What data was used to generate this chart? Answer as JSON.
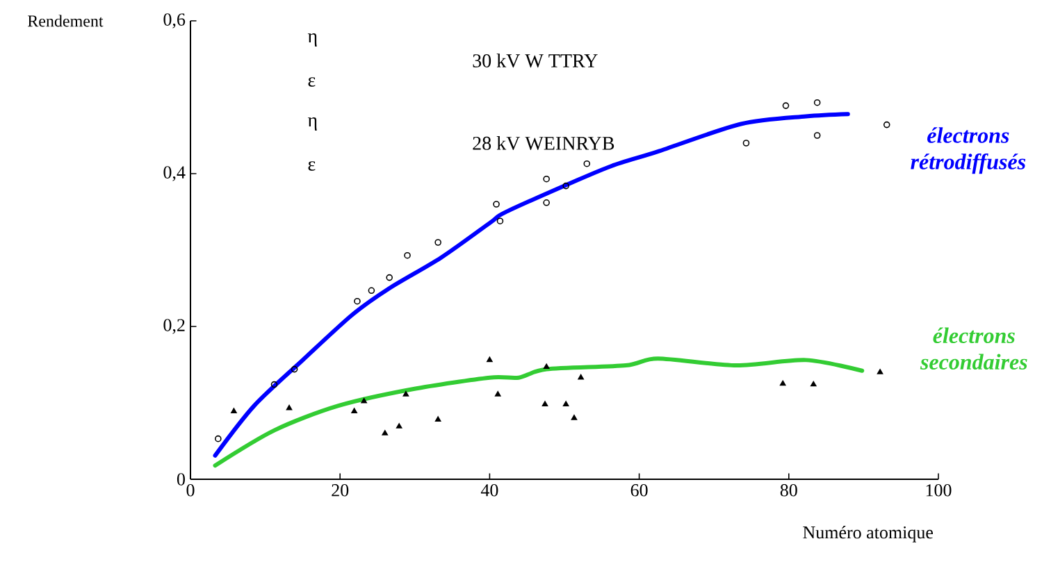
{
  "chart_data": {
    "type": "line",
    "xlabel": "Numéro atomique",
    "ylabel": "Rendement",
    "xlim": [
      0,
      100
    ],
    "xticks": [
      0,
      20,
      40,
      60,
      80,
      100
    ],
    "ylim": [
      0,
      0.6
    ],
    "yticks": [
      {
        "value": 0,
        "label": "0"
      },
      {
        "value": 0.2,
        "label": "0,2"
      },
      {
        "value": 0.4,
        "label": "0,4"
      },
      {
        "value": 0.6,
        "label": "0,6"
      }
    ],
    "annotations": [
      "η",
      "ε",
      "η",
      "ε",
      "30 kV W TTRY",
      "28 kV WEINRYB"
    ],
    "series": [
      {
        "name": "électrons rétrodiffusés",
        "color": "#0000ff",
        "x": [
          3.3,
          8.5,
          14.9,
          21.6,
          26.6,
          33.5,
          40.1,
          42,
          50.2,
          56.3,
          62.5,
          73.6,
          82.3,
          87.9
        ],
        "values": [
          0.031,
          0.096,
          0.155,
          0.215,
          0.25,
          0.29,
          0.336,
          0.349,
          0.385,
          0.41,
          0.429,
          0.465,
          0.475,
          0.478
        ]
      },
      {
        "name": "électrons secondaires",
        "color": "#33cc33",
        "x": [
          3.3,
          11.2,
          19.7,
          29.7,
          40,
          43.9,
          47.6,
          58.2,
          62.5,
          73,
          82.3,
          89.8
        ],
        "values": [
          0.018,
          0.064,
          0.096,
          0.118,
          0.133,
          0.133,
          0.144,
          0.149,
          0.158,
          0.149,
          0.156,
          0.142
        ]
      },
      {
        "type": "scatter",
        "color": "#000000",
        "marker": "circle",
        "x": [
          3.7,
          11.2,
          13.9,
          22.3,
          24.2,
          26.6,
          29,
          33.1,
          40.9,
          41.4,
          47.6,
          47.6,
          50.2,
          53,
          74.3,
          79.6,
          83.8,
          83.8,
          93.1
        ],
        "values": [
          0.053,
          0.124,
          0.144,
          0.233,
          0.247,
          0.264,
          0.293,
          0.31,
          0.36,
          0.338,
          0.393,
          0.362,
          0.384,
          0.413,
          0.44,
          0.489,
          0.45,
          0.493,
          0.464
        ]
      },
      {
        "type": "scatter",
        "color": "#000000",
        "marker": "triangle",
        "x": [
          5.8,
          13.2,
          21.9,
          23.2,
          26,
          27.9,
          28.8,
          33.1,
          40,
          41.1,
          47.4,
          47.6,
          50.2,
          51.3,
          52.2,
          79.2,
          83.3,
          92.2
        ],
        "values": [
          0.089,
          0.093,
          0.089,
          0.102,
          0.06,
          0.069,
          0.111,
          0.078,
          0.156,
          0.111,
          0.098,
          0.147,
          0.098,
          0.08,
          0.133,
          0.125,
          0.124,
          0.14
        ]
      }
    ]
  }
}
